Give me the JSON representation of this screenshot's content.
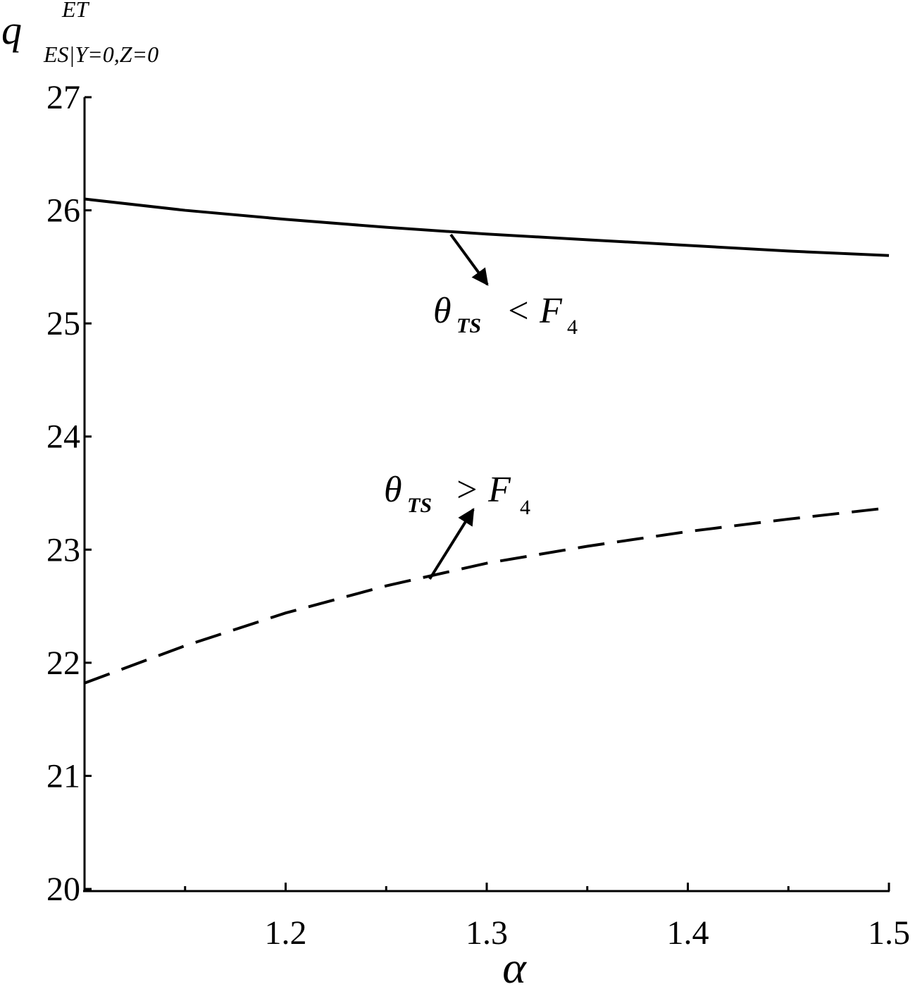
{
  "chart_data": {
    "type": "line",
    "y_label": {
      "base": "q",
      "sup": "ET",
      "sub": "ES|Y=0,Z=0"
    },
    "x_label": "α",
    "x": [
      1.1,
      1.15,
      1.2,
      1.25,
      1.3,
      1.35,
      1.4,
      1.45,
      1.5
    ],
    "series": [
      {
        "name": "solid",
        "color": "#000000",
        "dash": false,
        "values": [
          26.1,
          26.0,
          25.92,
          25.85,
          25.79,
          25.74,
          25.69,
          25.64,
          25.6
        ]
      },
      {
        "name": "dashed",
        "color": "#000000",
        "dash": true,
        "values": [
          21.82,
          22.15,
          22.44,
          22.68,
          22.88,
          23.03,
          23.16,
          23.27,
          23.37
        ]
      }
    ],
    "annotations": [
      {
        "symbol": "θ",
        "symbol_sub": "TS",
        "relation": "< F",
        "relation_sub": "4"
      },
      {
        "symbol": "θ",
        "symbol_sub": "TS",
        "relation": "> F",
        "relation_sub": "4"
      }
    ],
    "xlim": [
      1.1,
      1.5
    ],
    "xticks": [
      1.2,
      1.3,
      1.4,
      1.5
    ],
    "xminorticks": [
      1.15,
      1.25,
      1.35,
      1.45
    ],
    "ylim": [
      20,
      27
    ],
    "yticks": [
      20,
      21,
      22,
      23,
      24,
      25,
      26,
      27
    ],
    "grid": false
  }
}
